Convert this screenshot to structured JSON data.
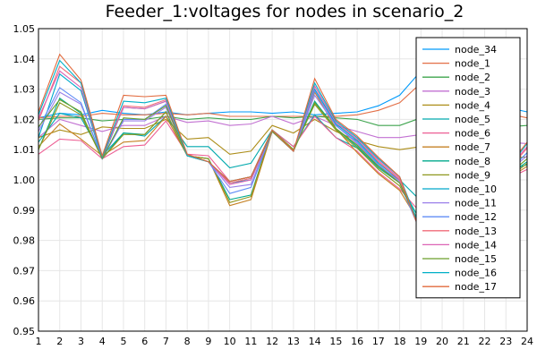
{
  "chart_data": {
    "type": "line",
    "title": "Feeder_1:voltages for nodes in scenario_2",
    "xlabel": "",
    "ylabel": "",
    "x": [
      1,
      2,
      3,
      4,
      5,
      6,
      7,
      8,
      9,
      10,
      11,
      12,
      13,
      14,
      15,
      16,
      17,
      18,
      19,
      20,
      21,
      22,
      23,
      24
    ],
    "xlim": [
      1,
      24
    ],
    "ylim": [
      0.95,
      1.05
    ],
    "yticks": [
      0.95,
      0.96,
      0.97,
      0.98,
      0.99,
      1.0,
      1.01,
      1.02,
      1.03,
      1.04,
      1.05
    ],
    "ytick_labels": [
      "0.95",
      "0.96",
      "0.97",
      "0.98",
      "0.99",
      "1.00",
      "1.01",
      "1.02",
      "1.03",
      "1.04",
      "1.05"
    ],
    "grid": true,
    "legend_position": "top-right",
    "series": [
      {
        "name": "node_34",
        "color": "#009AFA",
        "values": [
          1.0205,
          1.022,
          1.0215,
          1.023,
          1.022,
          1.0215,
          1.0225,
          1.0215,
          1.022,
          1.0225,
          1.0225,
          1.022,
          1.0225,
          1.0215,
          1.022,
          1.0225,
          1.0245,
          1.028,
          1.036,
          1.038,
          1.035,
          1.029,
          1.024,
          1.0225
        ]
      },
      {
        "name": "node_1",
        "color": "#E36F47",
        "values": [
          1.0205,
          1.021,
          1.021,
          1.022,
          1.0215,
          1.0215,
          1.022,
          1.0215,
          1.022,
          1.021,
          1.021,
          1.021,
          1.021,
          1.021,
          1.021,
          1.0215,
          1.023,
          1.0255,
          1.032,
          1.035,
          1.032,
          1.027,
          1.022,
          1.0205
        ]
      },
      {
        "name": "node_2",
        "color": "#3EA44E",
        "values": [
          1.02,
          1.0205,
          1.0205,
          1.0195,
          1.02,
          1.02,
          1.021,
          1.02,
          1.0205,
          1.02,
          1.02,
          1.021,
          1.0205,
          1.021,
          1.0205,
          1.02,
          1.018,
          1.018,
          1.0205,
          1.023,
          1.021,
          1.019,
          1.0175,
          1.018
        ]
      },
      {
        "name": "node_3",
        "color": "#C271D2",
        "values": [
          1.014,
          1.02,
          1.018,
          1.016,
          1.018,
          1.018,
          1.021,
          1.019,
          1.0195,
          1.018,
          1.0185,
          1.021,
          1.0185,
          1.021,
          1.018,
          1.016,
          1.014,
          1.014,
          1.015,
          1.017,
          1.015,
          1.014,
          1.0125,
          1.012
        ]
      },
      {
        "name": "node_4",
        "color": "#AC8D18",
        "values": [
          1.014,
          1.0165,
          1.015,
          1.0175,
          1.017,
          1.017,
          1.02,
          1.0135,
          1.014,
          1.0085,
          1.0095,
          1.018,
          1.0155,
          1.02,
          1.016,
          1.013,
          1.011,
          1.01,
          1.011,
          1.013,
          1.0105,
          1.009,
          1.0075,
          1.0075
        ]
      },
      {
        "name": "node_5",
        "color": "#00A9AD",
        "values": [
          1.0125,
          1.022,
          1.0205,
          1.008,
          1.0155,
          1.0145,
          1.021,
          1.011,
          1.011,
          1.004,
          1.0055,
          1.0165,
          1.011,
          1.0215,
          1.014,
          1.0105,
          1.0045,
          1.0,
          0.993,
          0.99,
          0.9915,
          0.9975,
          1.003,
          1.005
        ]
      },
      {
        "name": "node_6",
        "color": "#ED5E93",
        "values": [
          1.0085,
          1.0135,
          1.013,
          1.007,
          1.011,
          1.0115,
          1.0195,
          1.0085,
          1.008,
          0.9995,
          1.001,
          1.0165,
          1.011,
          1.021,
          1.014,
          1.0095,
          1.0025,
          0.997,
          0.989,
          0.986,
          0.988,
          0.995,
          1.0,
          1.0035
        ]
      },
      {
        "name": "node_7",
        "color": "#C68225",
        "values": [
          1.011,
          1.0185,
          1.0135,
          1.008,
          1.0125,
          1.013,
          1.021,
          1.008,
          1.007,
          0.9915,
          0.9935,
          1.016,
          1.01,
          1.029,
          1.017,
          1.009,
          1.002,
          0.9965,
          0.985,
          0.98,
          0.9835,
          0.993,
          1.0,
          1.0045
        ]
      },
      {
        "name": "node_8",
        "color": "#00A98D",
        "values": [
          1.01,
          1.027,
          1.022,
          1.007,
          1.0155,
          1.015,
          1.0225,
          1.008,
          1.007,
          0.9935,
          0.995,
          1.0165,
          1.01,
          1.026,
          1.017,
          1.011,
          1.004,
          0.999,
          0.986,
          0.981,
          0.984,
          0.995,
          1.001,
          1.006
        ]
      },
      {
        "name": "node_9",
        "color": "#8E971E",
        "values": [
          1.01,
          1.0255,
          1.0215,
          1.007,
          1.015,
          1.015,
          1.0225,
          1.008,
          1.007,
          0.9925,
          0.9945,
          1.0165,
          1.01,
          1.025,
          1.0165,
          1.0105,
          1.0035,
          0.998,
          0.985,
          0.98,
          0.983,
          0.994,
          1.0,
          1.0055
        ]
      },
      {
        "name": "node_10",
        "color": "#00A8CB",
        "values": [
          1.014,
          1.035,
          1.0295,
          1.007,
          1.024,
          1.0235,
          1.026,
          1.008,
          1.006,
          0.999,
          1.0,
          1.016,
          1.0095,
          1.03,
          1.0185,
          1.013,
          1.0055,
          1.0,
          0.983,
          0.978,
          0.982,
          0.996,
          1.002,
          1.009
        ]
      },
      {
        "name": "node_11",
        "color": "#9B7FE9",
        "values": [
          1.016,
          1.029,
          1.025,
          1.007,
          1.0195,
          1.0195,
          1.024,
          1.008,
          1.006,
          0.9975,
          0.9985,
          1.016,
          1.0095,
          1.028,
          1.018,
          1.012,
          1.005,
          0.9995,
          0.984,
          0.98,
          0.983,
          0.996,
          1.002,
          1.008
        ]
      },
      {
        "name": "node_12",
        "color": "#618DF6",
        "values": [
          1.017,
          1.0305,
          1.0255,
          1.007,
          1.02,
          1.02,
          1.025,
          1.008,
          1.006,
          0.9955,
          0.9975,
          1.016,
          1.0095,
          1.0295,
          1.018,
          1.0125,
          1.005,
          0.999,
          0.9825,
          0.978,
          0.9815,
          0.996,
          1.002,
          1.009
        ]
      },
      {
        "name": "node_13",
        "color": "#F16C7A",
        "values": [
          1.0195,
          1.0375,
          1.032,
          1.0075,
          1.0245,
          1.024,
          1.0265,
          1.008,
          1.006,
          0.999,
          1.0005,
          1.016,
          1.0095,
          1.031,
          1.019,
          1.0135,
          1.006,
          1.0,
          0.983,
          0.978,
          0.982,
          0.9965,
          1.0025,
          1.0105
        ]
      },
      {
        "name": "node_14",
        "color": "#DD64B5",
        "values": [
          1.0205,
          1.036,
          1.0305,
          1.0075,
          1.024,
          1.0235,
          1.026,
          1.008,
          1.006,
          0.9985,
          1.0,
          1.016,
          1.0095,
          1.031,
          1.019,
          1.0135,
          1.0065,
          1.0005,
          0.9835,
          0.9785,
          0.9825,
          0.9975,
          1.003,
          1.011
        ]
      },
      {
        "name": "node_15",
        "color": "#6B9F2A",
        "values": [
          1.0175,
          1.0265,
          1.0225,
          1.007,
          1.0205,
          1.02,
          1.0245,
          1.008,
          1.006,
          0.9995,
          1.001,
          1.016,
          1.0095,
          1.0255,
          1.017,
          1.0115,
          1.0045,
          0.999,
          0.984,
          0.98,
          0.983,
          0.995,
          1.001,
          1.007
        ]
      },
      {
        "name": "node_16",
        "color": "#00B0C7",
        "values": [
          1.0215,
          1.0395,
          1.032,
          1.0075,
          1.026,
          1.0255,
          1.027,
          1.008,
          1.006,
          0.9995,
          1.001,
          1.0165,
          1.0095,
          1.032,
          1.0195,
          1.014,
          1.007,
          1.001,
          0.9835,
          0.9785,
          0.9825,
          0.9975,
          1.003,
          1.012
        ]
      },
      {
        "name": "node_17",
        "color": "#E2693C",
        "values": [
          1.0225,
          1.0415,
          1.033,
          1.008,
          1.028,
          1.0275,
          1.028,
          1.0085,
          1.006,
          0.9995,
          1.001,
          1.0165,
          1.0095,
          1.0335,
          1.02,
          1.0145,
          1.0075,
          1.001,
          0.982,
          0.978,
          0.982,
          0.9975,
          1.0035,
          1.0125
        ]
      }
    ]
  }
}
